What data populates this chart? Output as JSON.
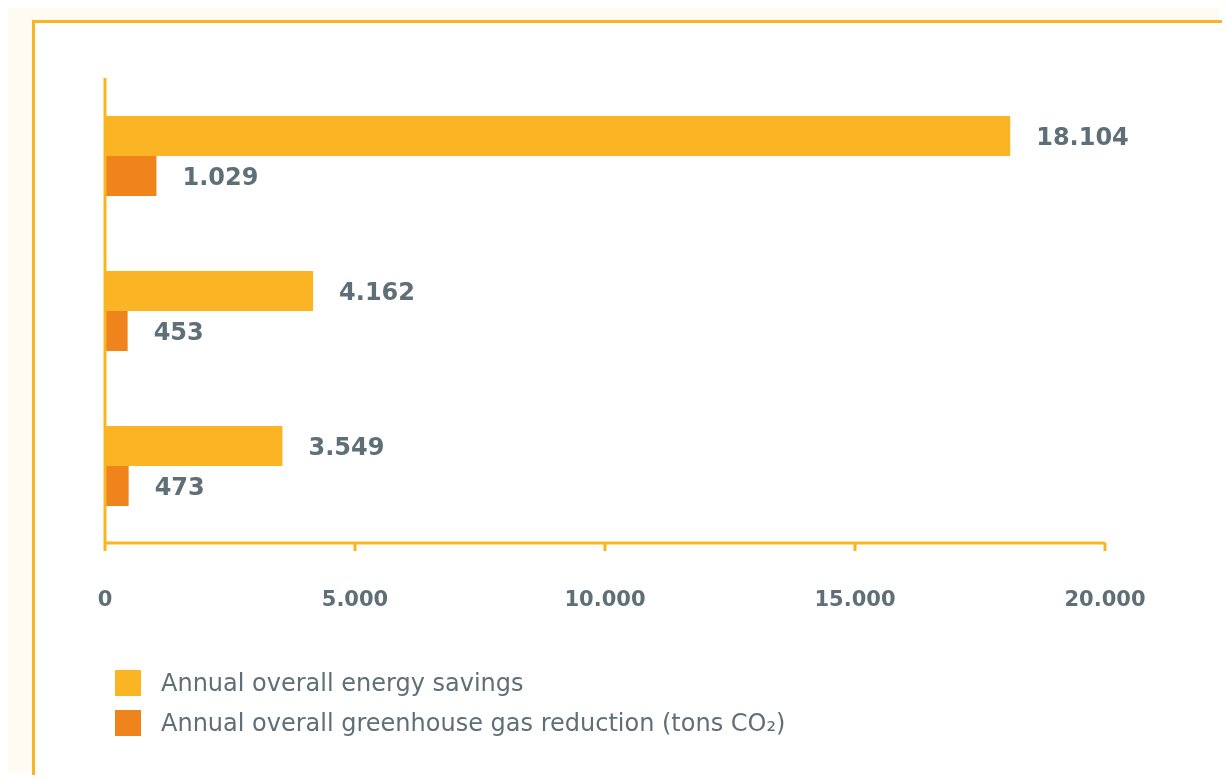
{
  "chart_data": {
    "type": "bar",
    "orientation": "horizontal",
    "categories": [
      null,
      null,
      null
    ],
    "series": [
      {
        "name": "Annual overall energy savings",
        "color": "#fbb424",
        "values": [
          18104,
          4162,
          3549
        ],
        "value_labels": [
          "18.104",
          "4.162",
          "3.549"
        ]
      },
      {
        "name": "Annual overall greenhouse gas reduction (tons CO₂)",
        "color": "#f0841c",
        "values": [
          1029,
          453,
          473
        ],
        "value_labels": [
          "1.029",
          "453",
          "473"
        ]
      }
    ],
    "xlim": [
      0,
      20000
    ],
    "xticks": [
      {
        "value": 0,
        "label": "0"
      },
      {
        "value": 5000,
        "label": "5.000"
      },
      {
        "value": 10000,
        "label": "10.000"
      },
      {
        "value": 15000,
        "label": "15.000"
      },
      {
        "value": 20000,
        "label": "20.000"
      }
    ],
    "legend": "bottom"
  }
}
